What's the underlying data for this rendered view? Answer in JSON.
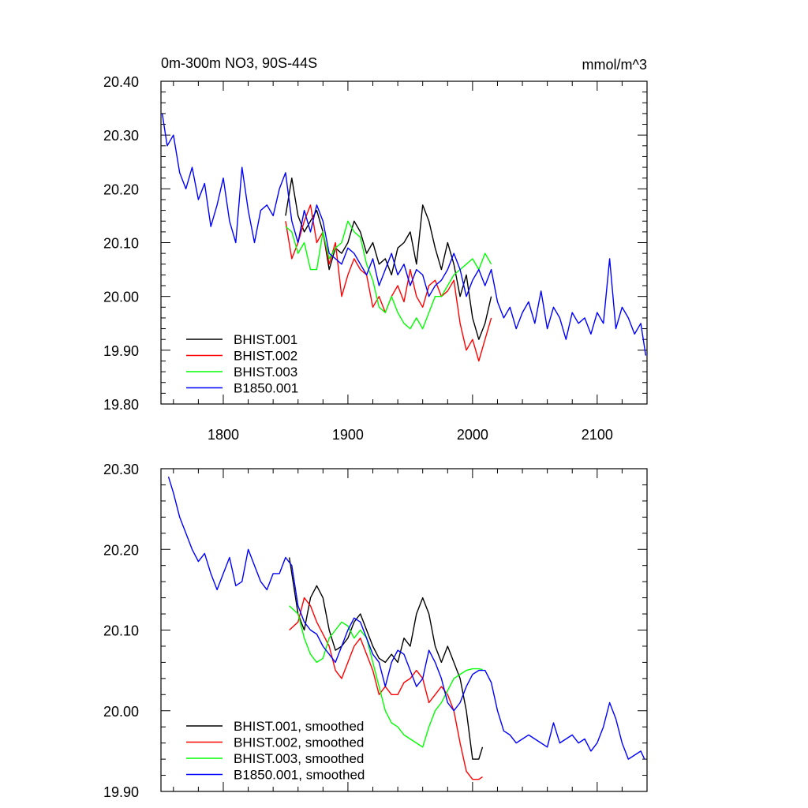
{
  "header": {
    "title": "0m-300m NO3, 90S-44S",
    "units": "mmol/m^3"
  },
  "colors": {
    "BHIST.001": "#000000",
    "BHIST.002": "#ff0000",
    "BHIST.003": "#00ff00",
    "B1850.001": "#0000ff"
  },
  "chart_data": [
    {
      "type": "line",
      "title": "0m-300m NO3, 90S-44S",
      "units": "mmol/m^3",
      "xlim": [
        1750,
        2140
      ],
      "ylim": [
        19.8,
        20.4
      ],
      "xticks": [
        1800,
        1900,
        2000,
        2100
      ],
      "xtick_labels": [
        "1800",
        "1900",
        "2000",
        "2100"
      ],
      "yticks": [
        19.8,
        19.9,
        20.0,
        20.1,
        20.2,
        20.3,
        20.4
      ],
      "ytick_labels": [
        "19.80",
        "19.90",
        "20.00",
        "20.10",
        "20.20",
        "20.30",
        "20.40"
      ],
      "legend_position": "bottom-left",
      "series": [
        {
          "name": "BHIST.001",
          "color": "#000000",
          "x": [
            1850,
            1855,
            1860,
            1865,
            1870,
            1875,
            1880,
            1885,
            1890,
            1895,
            1900,
            1905,
            1910,
            1915,
            1920,
            1925,
            1930,
            1935,
            1940,
            1945,
            1950,
            1955,
            1960,
            1965,
            1970,
            1975,
            1980,
            1985,
            1990,
            1995,
            2000,
            2005,
            2010,
            2015
          ],
          "y": [
            20.15,
            20.22,
            20.15,
            20.12,
            20.14,
            20.16,
            20.12,
            20.05,
            20.09,
            20.08,
            20.1,
            20.14,
            20.12,
            20.08,
            20.1,
            20.06,
            20.07,
            20.04,
            20.09,
            20.1,
            20.12,
            20.06,
            20.17,
            20.14,
            20.09,
            20.05,
            20.1,
            20.06,
            20.0,
            20.04,
            19.96,
            19.92,
            19.95,
            20.0
          ]
        },
        {
          "name": "BHIST.002",
          "color": "#ff0000",
          "x": [
            1850,
            1855,
            1860,
            1865,
            1870,
            1875,
            1880,
            1885,
            1890,
            1895,
            1900,
            1905,
            1910,
            1915,
            1920,
            1925,
            1930,
            1935,
            1940,
            1945,
            1950,
            1955,
            1960,
            1965,
            1970,
            1975,
            1980,
            1985,
            1990,
            1995,
            2000,
            2005,
            2010,
            2015
          ],
          "y": [
            20.14,
            20.07,
            20.1,
            20.14,
            20.17,
            20.1,
            20.12,
            20.06,
            20.1,
            20.0,
            20.04,
            20.07,
            20.05,
            20.04,
            19.98,
            20.0,
            19.97,
            20.0,
            20.02,
            19.99,
            20.05,
            20.0,
            19.98,
            20.02,
            20.03,
            20.0,
            20.01,
            20.03,
            19.95,
            19.9,
            19.92,
            19.88,
            19.92,
            19.96
          ]
        },
        {
          "name": "BHIST.003",
          "color": "#00ff00",
          "x": [
            1850,
            1855,
            1860,
            1865,
            1870,
            1875,
            1880,
            1885,
            1890,
            1895,
            1900,
            1905,
            1910,
            1915,
            1920,
            1925,
            1930,
            1935,
            1940,
            1945,
            1950,
            1955,
            1960,
            1965,
            1970,
            1975,
            1980,
            1985,
            1990,
            1995,
            2000,
            2005,
            2010,
            2015
          ],
          "y": [
            20.13,
            20.12,
            20.08,
            20.1,
            20.05,
            20.05,
            20.12,
            20.07,
            20.09,
            20.1,
            20.14,
            20.12,
            20.11,
            20.06,
            20.03,
            19.98,
            19.97,
            20.0,
            19.97,
            19.95,
            19.94,
            19.96,
            19.94,
            19.97,
            20.0,
            20.0,
            20.02,
            20.04,
            20.05,
            20.06,
            20.07,
            20.05,
            20.08,
            20.06
          ]
        },
        {
          "name": "B1850.001",
          "color": "#0000ff",
          "x": [
            1751,
            1755,
            1760,
            1765,
            1770,
            1775,
            1780,
            1785,
            1790,
            1795,
            1800,
            1805,
            1810,
            1815,
            1820,
            1825,
            1830,
            1835,
            1840,
            1845,
            1850,
            1855,
            1860,
            1865,
            1870,
            1875,
            1880,
            1885,
            1890,
            1895,
            1900,
            1905,
            1910,
            1915,
            1920,
            1925,
            1930,
            1935,
            1940,
            1945,
            1950,
            1955,
            1960,
            1965,
            1970,
            1975,
            1980,
            1985,
            1990,
            1995,
            2000,
            2005,
            2010,
            2015,
            2020,
            2025,
            2030,
            2035,
            2040,
            2045,
            2050,
            2055,
            2060,
            2065,
            2070,
            2075,
            2080,
            2085,
            2090,
            2095,
            2100,
            2105,
            2110,
            2115,
            2120,
            2125,
            2130,
            2135,
            2139
          ],
          "y": [
            20.34,
            20.28,
            20.3,
            20.23,
            20.2,
            20.24,
            20.18,
            20.21,
            20.13,
            20.17,
            20.22,
            20.14,
            20.1,
            20.24,
            20.16,
            20.1,
            20.16,
            20.17,
            20.15,
            20.2,
            20.23,
            20.14,
            20.1,
            20.16,
            20.12,
            20.17,
            20.14,
            20.08,
            20.07,
            20.06,
            20.09,
            20.08,
            20.06,
            20.04,
            20.07,
            20.02,
            20.05,
            20.08,
            20.04,
            20.06,
            20.02,
            20.05,
            20.04,
            20.0,
            20.02,
            20.03,
            20.05,
            20.08,
            20.05,
            20.0,
            20.03,
            20.05,
            20.02,
            20.05,
            19.99,
            19.96,
            19.98,
            19.94,
            19.97,
            19.99,
            19.95,
            20.01,
            19.94,
            19.98,
            19.96,
            19.92,
            19.97,
            19.95,
            19.96,
            19.93,
            19.97,
            19.95,
            20.07,
            19.94,
            19.98,
            19.96,
            19.93,
            19.95,
            19.89
          ]
        }
      ]
    },
    {
      "type": "line",
      "xlim": [
        1750,
        2140
      ],
      "ylim": [
        19.9,
        20.3
      ],
      "xticks": [
        1800,
        1900,
        2000,
        2100
      ],
      "yticks": [
        19.9,
        20.0,
        20.1,
        20.2,
        20.3
      ],
      "ytick_labels": [
        "19.90",
        "20.00",
        "20.10",
        "20.20",
        "20.30"
      ],
      "legend_position": "bottom-left",
      "series": [
        {
          "name": "BHIST.001, smoothed",
          "color": "#000000",
          "x": [
            1853,
            1860,
            1865,
            1870,
            1875,
            1880,
            1885,
            1890,
            1895,
            1900,
            1905,
            1910,
            1915,
            1920,
            1925,
            1930,
            1935,
            1940,
            1945,
            1950,
            1955,
            1960,
            1965,
            1970,
            1975,
            1980,
            1985,
            1990,
            1995,
            2000,
            2005,
            2008
          ],
          "y": [
            20.19,
            20.12,
            20.1,
            20.14,
            20.155,
            20.14,
            20.1,
            20.075,
            20.08,
            20.09,
            20.11,
            20.12,
            20.1,
            20.08,
            20.065,
            20.06,
            20.07,
            20.06,
            20.09,
            20.08,
            20.12,
            20.14,
            20.12,
            20.08,
            20.06,
            20.08,
            20.06,
            20.04,
            20.0,
            19.94,
            19.94,
            19.955
          ]
        },
        {
          "name": "BHIST.002, smoothed",
          "color": "#ff0000",
          "x": [
            1853,
            1860,
            1865,
            1870,
            1875,
            1880,
            1885,
            1890,
            1895,
            1900,
            1905,
            1910,
            1915,
            1920,
            1925,
            1930,
            1935,
            1940,
            1945,
            1950,
            1955,
            1960,
            1965,
            1970,
            1975,
            1980,
            1985,
            1990,
            1995,
            2000,
            2005,
            2008
          ],
          "y": [
            20.1,
            20.11,
            20.14,
            20.13,
            20.11,
            20.095,
            20.08,
            20.05,
            20.04,
            20.06,
            20.08,
            20.09,
            20.07,
            20.05,
            20.02,
            20.03,
            20.02,
            20.02,
            20.035,
            20.04,
            20.05,
            20.04,
            20.01,
            20.02,
            20.03,
            20.02,
            20.0,
            19.96,
            19.925,
            19.915,
            19.915,
            19.918
          ]
        },
        {
          "name": "BHIST.003, smoothed",
          "color": "#00ff00",
          "x": [
            1853,
            1860,
            1865,
            1870,
            1875,
            1880,
            1885,
            1890,
            1895,
            1900,
            1905,
            1910,
            1915,
            1920,
            1925,
            1930,
            1935,
            1940,
            1945,
            1950,
            1955,
            1960,
            1965,
            1970,
            1975,
            1980,
            1985,
            1990,
            1995,
            2000,
            2005,
            2008
          ],
          "y": [
            20.13,
            20.12,
            20.09,
            20.07,
            20.06,
            20.065,
            20.09,
            20.1,
            20.11,
            20.105,
            20.09,
            20.1,
            20.09,
            20.06,
            20.03,
            20.0,
            19.985,
            19.98,
            19.97,
            19.965,
            19.96,
            19.955,
            19.98,
            20.0,
            20.01,
            20.025,
            20.04,
            20.045,
            20.05,
            20.052,
            20.052,
            20.051
          ]
        },
        {
          "name": "B1850.001, smoothed",
          "color": "#0000ff",
          "x": [
            1756,
            1760,
            1765,
            1770,
            1775,
            1780,
            1785,
            1790,
            1795,
            1800,
            1805,
            1810,
            1815,
            1820,
            1825,
            1830,
            1835,
            1840,
            1845,
            1850,
            1855,
            1860,
            1865,
            1870,
            1875,
            1880,
            1885,
            1890,
            1895,
            1900,
            1905,
            1910,
            1915,
            1920,
            1925,
            1930,
            1935,
            1940,
            1945,
            1950,
            1955,
            1960,
            1965,
            1970,
            1975,
            1980,
            1985,
            1990,
            1995,
            2000,
            2005,
            2010,
            2015,
            2020,
            2025,
            2030,
            2035,
            2040,
            2045,
            2050,
            2055,
            2060,
            2065,
            2070,
            2075,
            2080,
            2085,
            2090,
            2095,
            2100,
            2105,
            2110,
            2115,
            2120,
            2125,
            2130,
            2135,
            2138
          ],
          "y": [
            20.29,
            20.27,
            20.24,
            20.22,
            20.2,
            20.185,
            20.195,
            20.17,
            20.15,
            20.17,
            20.19,
            20.155,
            20.16,
            20.2,
            20.18,
            20.16,
            20.15,
            20.17,
            20.17,
            20.19,
            20.18,
            20.13,
            20.11,
            20.1,
            20.095,
            20.08,
            20.07,
            20.06,
            20.08,
            20.1,
            20.115,
            20.11,
            20.09,
            20.07,
            20.06,
            20.03,
            20.06,
            20.075,
            20.07,
            20.05,
            20.03,
            20.04,
            20.075,
            20.06,
            20.04,
            20.01,
            20.0,
            20.01,
            20.03,
            20.045,
            20.05,
            20.05,
            20.035,
            20.0,
            19.975,
            19.97,
            19.96,
            19.965,
            19.97,
            19.965,
            19.96,
            19.955,
            19.985,
            19.96,
            19.965,
            19.97,
            19.96,
            19.965,
            19.95,
            19.96,
            19.98,
            20.01,
            19.99,
            19.96,
            19.94,
            19.945,
            19.95,
            19.94
          ]
        }
      ]
    }
  ]
}
